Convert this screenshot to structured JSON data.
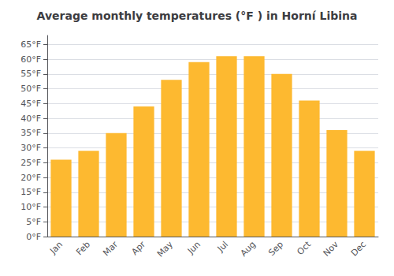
{
  "chart_data": {
    "type": "bar",
    "title": "Average monthly temperatures (°F ) in Horní Libina",
    "categories": [
      "Jan",
      "Feb",
      "Mar",
      "Apr",
      "May",
      "Jun",
      "Jul",
      "Aug",
      "Sep",
      "Oct",
      "Nov",
      "Dec"
    ],
    "values": [
      26,
      29,
      35,
      44,
      53,
      59,
      61,
      61,
      55,
      46,
      36,
      29
    ],
    "color": "#FDB930",
    "ylim": [
      0,
      68
    ],
    "yticks": [
      {
        "value": 0,
        "label": "0°F"
      },
      {
        "value": 5,
        "label": "5°F"
      },
      {
        "value": 10,
        "label": "10°F"
      },
      {
        "value": 15,
        "label": "15°F"
      },
      {
        "value": 20,
        "label": "20°F"
      },
      {
        "value": 25,
        "label": "25°F"
      },
      {
        "value": 30,
        "label": "30°F"
      },
      {
        "value": 35,
        "label": "35°F"
      },
      {
        "value": 40,
        "label": "40°F"
      },
      {
        "value": 45,
        "label": "45°F"
      },
      {
        "value": 50,
        "label": "50°F"
      },
      {
        "value": 55,
        "label": "55°F"
      },
      {
        "value": 60,
        "label": "60°F"
      },
      {
        "value": 65,
        "label": "65°F"
      }
    ],
    "grid": true
  }
}
